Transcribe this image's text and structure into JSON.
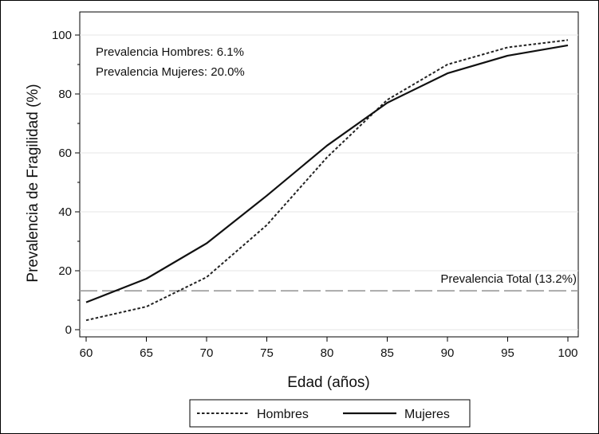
{
  "chart_data": {
    "type": "line",
    "title": "",
    "xlabel": "Edad (años)",
    "ylabel": "Prevalencia de Fragilidad (%)",
    "xlim": [
      60,
      100
    ],
    "ylim": [
      0,
      100
    ],
    "x_ticks": [
      "60",
      "65",
      "70",
      "75",
      "80",
      "85",
      "90",
      "95",
      "100"
    ],
    "y_ticks": [
      "0",
      "20",
      "40",
      "60",
      "80",
      "100"
    ],
    "x": [
      60,
      65,
      70,
      75,
      80,
      85,
      90,
      95,
      100
    ],
    "series": [
      {
        "name": "Hombres",
        "style": "dotted",
        "color": "#222222",
        "values": [
          3.2,
          7.8,
          17.8,
          35.5,
          58.5,
          78,
          90,
          95.8,
          98.3
        ]
      },
      {
        "name": "Mujeres",
        "style": "solid",
        "color": "#111111",
        "values": [
          9.3,
          17.3,
          29.3,
          45.5,
          62.5,
          77,
          87,
          93,
          96.5
        ]
      }
    ],
    "reference_line": {
      "label": "Prevalencia Total (13.2%)",
      "value": 13.2,
      "color": "#9a9a9a",
      "style": "dashed"
    },
    "annotations": [
      "Prevalencia Hombres: 6.1%",
      "Prevalencia Mujeres: 20.0%"
    ],
    "grid": {
      "horizontal": true,
      "color": "#e6e6e6"
    },
    "legend": {
      "placement": "bottom"
    }
  }
}
